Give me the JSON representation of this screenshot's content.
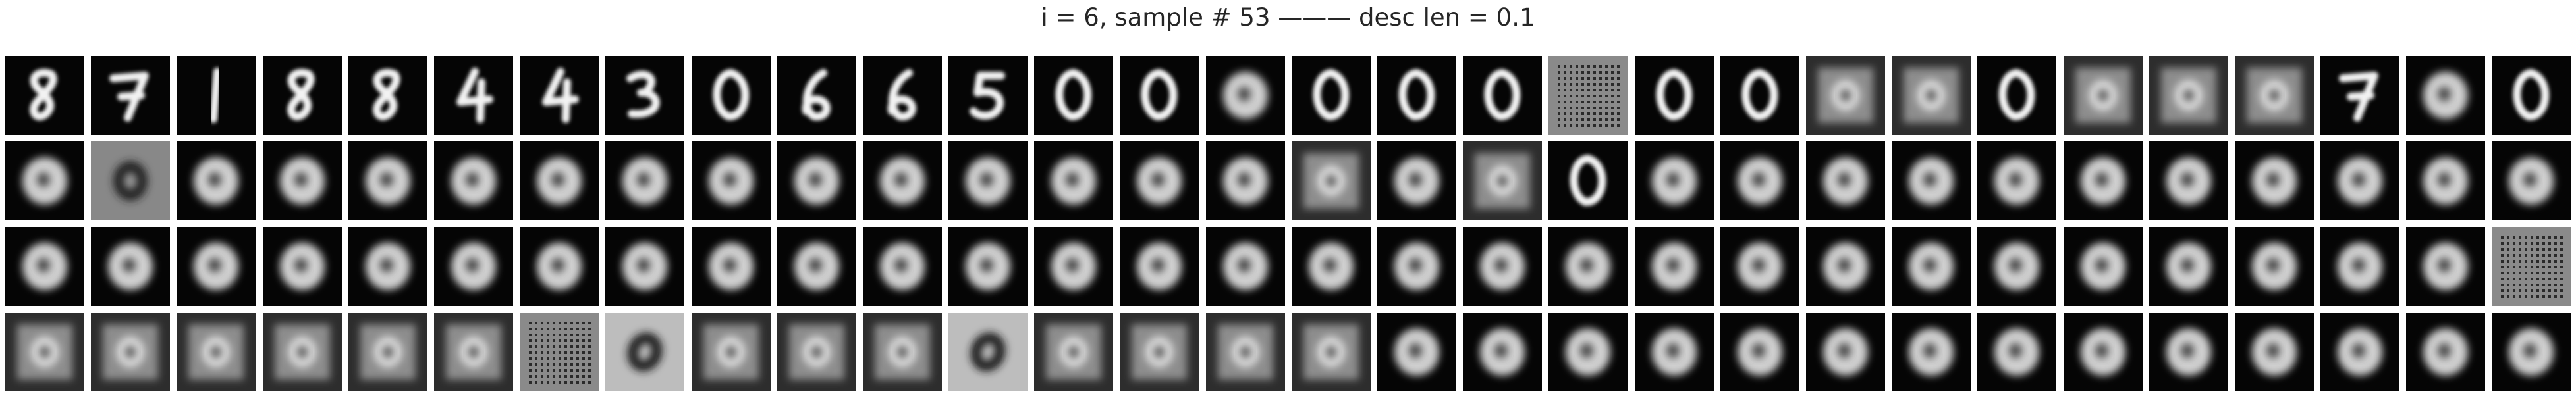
{
  "figure": {
    "title": "i = 6, sample # 53 ——— desc len = 0.1"
  },
  "grid": {
    "columns": 30,
    "rows": 4,
    "tiles": [
      {
        "kind": "digit8"
      },
      {
        "kind": "digit7"
      },
      {
        "kind": "digit1"
      },
      {
        "kind": "digit8"
      },
      {
        "kind": "digit8"
      },
      {
        "kind": "digit4"
      },
      {
        "kind": "digit4"
      },
      {
        "kind": "digit3"
      },
      {
        "kind": "digit0"
      },
      {
        "kind": "digit6"
      },
      {
        "kind": "digit6"
      },
      {
        "kind": "digit5"
      },
      {
        "kind": "digit0"
      },
      {
        "kind": "digit0"
      },
      {
        "kind": "blob"
      },
      {
        "kind": "digit0"
      },
      {
        "kind": "digit0"
      },
      {
        "kind": "digit0"
      },
      {
        "kind": "grid"
      },
      {
        "kind": "digit0"
      },
      {
        "kind": "digit0"
      },
      {
        "kind": "fuzzy"
      },
      {
        "kind": "fuzzy"
      },
      {
        "kind": "digit0"
      },
      {
        "kind": "fuzzy"
      },
      {
        "kind": "fuzzy"
      },
      {
        "kind": "fuzzy"
      },
      {
        "kind": "digit7"
      },
      {
        "kind": "blob"
      },
      {
        "kind": "digit0"
      },
      {
        "kind": "blob"
      },
      {
        "kind": "fuzzyring"
      },
      {
        "kind": "blob"
      },
      {
        "kind": "blob"
      },
      {
        "kind": "blob"
      },
      {
        "kind": "blob"
      },
      {
        "kind": "blob"
      },
      {
        "kind": "blob"
      },
      {
        "kind": "blob"
      },
      {
        "kind": "blob"
      },
      {
        "kind": "blob"
      },
      {
        "kind": "blob"
      },
      {
        "kind": "blob"
      },
      {
        "kind": "blob"
      },
      {
        "kind": "blob"
      },
      {
        "kind": "fuzzy"
      },
      {
        "kind": "blob"
      },
      {
        "kind": "fuzzy"
      },
      {
        "kind": "digit0"
      },
      {
        "kind": "blob"
      },
      {
        "kind": "blob"
      },
      {
        "kind": "blob"
      },
      {
        "kind": "blob"
      },
      {
        "kind": "blob"
      },
      {
        "kind": "blob"
      },
      {
        "kind": "blob"
      },
      {
        "kind": "blob"
      },
      {
        "kind": "blob"
      },
      {
        "kind": "blob"
      },
      {
        "kind": "blob"
      },
      {
        "kind": "blob"
      },
      {
        "kind": "blob"
      },
      {
        "kind": "blob"
      },
      {
        "kind": "blob"
      },
      {
        "kind": "blob"
      },
      {
        "kind": "blob"
      },
      {
        "kind": "blob"
      },
      {
        "kind": "blob"
      },
      {
        "kind": "blob"
      },
      {
        "kind": "blob"
      },
      {
        "kind": "blob"
      },
      {
        "kind": "blob"
      },
      {
        "kind": "blob"
      },
      {
        "kind": "blob"
      },
      {
        "kind": "blob"
      },
      {
        "kind": "blob"
      },
      {
        "kind": "blob"
      },
      {
        "kind": "blob"
      },
      {
        "kind": "blob"
      },
      {
        "kind": "blob"
      },
      {
        "kind": "blob"
      },
      {
        "kind": "blob"
      },
      {
        "kind": "blob"
      },
      {
        "kind": "blob"
      },
      {
        "kind": "blob"
      },
      {
        "kind": "blob"
      },
      {
        "kind": "blob"
      },
      {
        "kind": "blob"
      },
      {
        "kind": "blob"
      },
      {
        "kind": "grid"
      },
      {
        "kind": "fuzzy"
      },
      {
        "kind": "fuzzy"
      },
      {
        "kind": "fuzzy"
      },
      {
        "kind": "fuzzy"
      },
      {
        "kind": "fuzzy"
      },
      {
        "kind": "fuzzy"
      },
      {
        "kind": "grid"
      },
      {
        "kind": "darkring"
      },
      {
        "kind": "fuzzy"
      },
      {
        "kind": "fuzzy"
      },
      {
        "kind": "fuzzy"
      },
      {
        "kind": "darkring"
      },
      {
        "kind": "fuzzy"
      },
      {
        "kind": "fuzzy"
      },
      {
        "kind": "fuzzy"
      },
      {
        "kind": "fuzzy"
      },
      {
        "kind": "blob"
      },
      {
        "kind": "blob"
      },
      {
        "kind": "blob"
      },
      {
        "kind": "blob"
      },
      {
        "kind": "blob"
      },
      {
        "kind": "blob"
      },
      {
        "kind": "blob"
      },
      {
        "kind": "blob"
      },
      {
        "kind": "blob"
      },
      {
        "kind": "blob"
      },
      {
        "kind": "blob"
      },
      {
        "kind": "blob"
      },
      {
        "kind": "blob"
      },
      {
        "kind": "blob"
      }
    ]
  }
}
